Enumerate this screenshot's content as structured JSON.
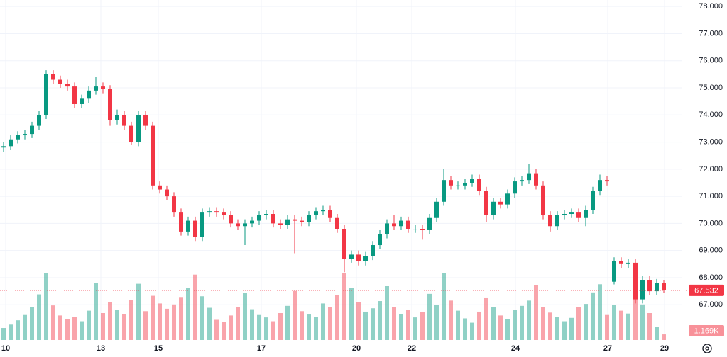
{
  "chart_data": {
    "type": "candlestick",
    "open": [
      72.8,
      72.85,
      73.1,
      73.25,
      73.3,
      73.6,
      74.0,
      75.5,
      75.3,
      75.15,
      75.05,
      74.4,
      74.6,
      74.9,
      75.05,
      74.95,
      73.8,
      74.0,
      73.6,
      73.0,
      74.0,
      73.6,
      71.4,
      71.25,
      71.0,
      70.4,
      69.7,
      70.1,
      69.5,
      70.4,
      70.45,
      70.4,
      70.3,
      70.0,
      69.9,
      70.0,
      70.1,
      70.3,
      70.35,
      70.0,
      69.95,
      70.15,
      70.1,
      70.05,
      70.3,
      70.45,
      70.5,
      70.2,
      69.8,
      68.7,
      68.85,
      68.6,
      68.8,
      69.2,
      69.6,
      70.0,
      69.9,
      70.1,
      69.8,
      69.8,
      69.75,
      70.2,
      70.8,
      71.6,
      71.4,
      71.4,
      71.5,
      71.65,
      71.2,
      70.3,
      70.8,
      70.7,
      71.1,
      71.55,
      71.6,
      71.85,
      71.4,
      70.3,
      69.9,
      70.3,
      70.35,
      70.4,
      70.2,
      70.5,
      71.2,
      71.6,
      67.85,
      68.6,
      68.5,
      68.55,
      67.2,
      67.9,
      67.5,
      67.8
    ],
    "high": [
      73.0,
      73.25,
      73.4,
      73.45,
      73.75,
      74.15,
      75.65,
      75.65,
      75.45,
      75.3,
      75.2,
      74.75,
      75.05,
      75.4,
      75.2,
      75.1,
      74.2,
      74.15,
      73.75,
      74.15,
      74.15,
      73.75,
      71.55,
      71.4,
      71.15,
      70.55,
      70.25,
      70.25,
      70.55,
      70.6,
      70.6,
      70.55,
      70.45,
      70.15,
      70.15,
      70.25,
      70.45,
      70.5,
      70.5,
      70.15,
      70.3,
      70.3,
      70.25,
      70.45,
      70.6,
      70.65,
      70.65,
      70.35,
      69.95,
      69.0,
      69.0,
      68.95,
      69.35,
      69.75,
      70.15,
      70.3,
      70.25,
      70.25,
      69.95,
      69.95,
      70.35,
      70.95,
      72.0,
      71.75,
      71.55,
      71.65,
      71.8,
      71.8,
      71.35,
      70.95,
      70.95,
      71.25,
      71.7,
      71.75,
      72.2,
      72.0,
      71.55,
      70.45,
      70.45,
      70.5,
      70.55,
      70.55,
      70.65,
      71.35,
      71.8,
      71.75,
      68.75,
      68.75,
      68.7,
      68.7,
      68.05,
      68.05,
      67.95,
      67.9
    ],
    "low": [
      72.65,
      72.7,
      72.95,
      73.1,
      73.15,
      73.45,
      73.85,
      75.15,
      75.0,
      74.9,
      74.25,
      74.25,
      74.45,
      74.75,
      74.8,
      73.6,
      73.65,
      73.45,
      72.9,
      72.85,
      73.45,
      71.25,
      71.1,
      70.85,
      70.25,
      69.55,
      69.55,
      69.35,
      69.35,
      70.25,
      70.25,
      70.15,
      69.85,
      69.75,
      69.2,
      69.85,
      69.95,
      70.15,
      69.85,
      69.8,
      69.8,
      68.9,
      69.9,
      69.9,
      70.15,
      70.3,
      70.05,
      69.65,
      68.2,
      68.55,
      68.45,
      68.45,
      68.65,
      69.05,
      69.45,
      69.75,
      69.75,
      69.65,
      69.65,
      69.4,
      69.6,
      70.05,
      70.65,
      71.25,
      71.25,
      71.25,
      71.35,
      71.05,
      70.05,
      70.15,
      70.55,
      70.55,
      70.95,
      71.4,
      71.45,
      71.25,
      70.15,
      69.7,
      69.75,
      70.15,
      70.2,
      70.05,
      69.9,
      70.35,
      71.05,
      71.4,
      67.75,
      68.35,
      68.35,
      67.05,
      67.05,
      67.35,
      67.35,
      67.45
    ],
    "close": [
      72.85,
      73.1,
      73.25,
      73.3,
      73.6,
      74.0,
      75.5,
      75.3,
      75.15,
      75.05,
      74.4,
      74.6,
      74.9,
      75.05,
      74.95,
      73.8,
      74.0,
      73.6,
      73.0,
      74.0,
      73.6,
      71.4,
      71.25,
      71.0,
      70.4,
      69.7,
      70.1,
      69.5,
      70.4,
      70.45,
      70.4,
      70.3,
      70.0,
      69.9,
      70.0,
      70.1,
      70.3,
      70.35,
      70.0,
      69.95,
      70.15,
      70.1,
      70.05,
      70.3,
      70.45,
      70.5,
      70.2,
      69.8,
      68.7,
      68.85,
      68.6,
      68.8,
      69.2,
      69.6,
      70.0,
      69.9,
      70.1,
      69.8,
      69.8,
      69.75,
      70.2,
      70.8,
      71.6,
      71.4,
      71.4,
      71.5,
      71.65,
      71.2,
      70.3,
      70.8,
      70.7,
      71.1,
      71.55,
      71.6,
      71.85,
      71.4,
      70.3,
      69.9,
      70.3,
      70.35,
      70.4,
      70.2,
      70.5,
      71.2,
      71.6,
      71.55,
      68.6,
      68.5,
      68.55,
      67.2,
      67.9,
      67.5,
      67.8,
      67.532
    ],
    "volume": [
      2500,
      3200,
      4100,
      5200,
      6800,
      9500,
      14000,
      7200,
      5100,
      4300,
      4800,
      3900,
      6100,
      11800,
      5600,
      7900,
      6200,
      5400,
      8300,
      11700,
      6000,
      9200,
      7600,
      6500,
      7400,
      8800,
      10900,
      13600,
      9100,
      6700,
      4200,
      3800,
      5100,
      6900,
      9800,
      6400,
      5200,
      4700,
      3900,
      5600,
      7100,
      10200,
      6000,
      5300,
      4800,
      7600,
      6800,
      9400,
      14000,
      10800,
      7900,
      5900,
      6600,
      8100,
      11200,
      6900,
      5400,
      6300,
      4700,
      5800,
      9600,
      7300,
      13900,
      8200,
      6100,
      4500,
      3600,
      5900,
      8700,
      6800,
      5100,
      4400,
      6200,
      7100,
      8200,
      11400,
      6900,
      5700,
      4800,
      3900,
      4600,
      6800,
      7500,
      9900,
      11600,
      5200,
      7300,
      6100,
      5500,
      9800,
      7400,
      5600,
      2800,
      1169
    ],
    "volume_last_label": "1.169K",
    "up_color": "#089981",
    "down_color": "#f23645",
    "xlim": [
      -0.5,
      95.5
    ],
    "xticks": [
      {
        "value": 0.3,
        "label": "10"
      },
      {
        "value": 13.7,
        "label": "13"
      },
      {
        "value": 21.8,
        "label": "15"
      },
      {
        "value": 36.3,
        "label": "17"
      },
      {
        "value": 49.7,
        "label": "20"
      },
      {
        "value": 57.5,
        "label": "22"
      },
      {
        "value": 72.1,
        "label": "24"
      },
      {
        "value": 85.1,
        "label": "27"
      },
      {
        "value": 93.1,
        "label": "29"
      }
    ],
    "ylim": [
      65.7,
      78.24
    ],
    "yticks": [
      {
        "value": 67,
        "label": "67.000"
      },
      {
        "value": 68,
        "label": "68.000"
      },
      {
        "value": 69,
        "label": "69.000"
      },
      {
        "value": 70,
        "label": "70.000"
      },
      {
        "value": 71,
        "label": "71.000"
      },
      {
        "value": 72,
        "label": "72.000"
      },
      {
        "value": 73,
        "label": "73.000"
      },
      {
        "value": 74,
        "label": "74.000"
      },
      {
        "value": 75,
        "label": "75.000"
      },
      {
        "value": 76,
        "label": "76.000"
      },
      {
        "value": 77,
        "label": "77.000"
      },
      {
        "value": 78,
        "label": "78.000"
      }
    ],
    "grid": true
  }
}
